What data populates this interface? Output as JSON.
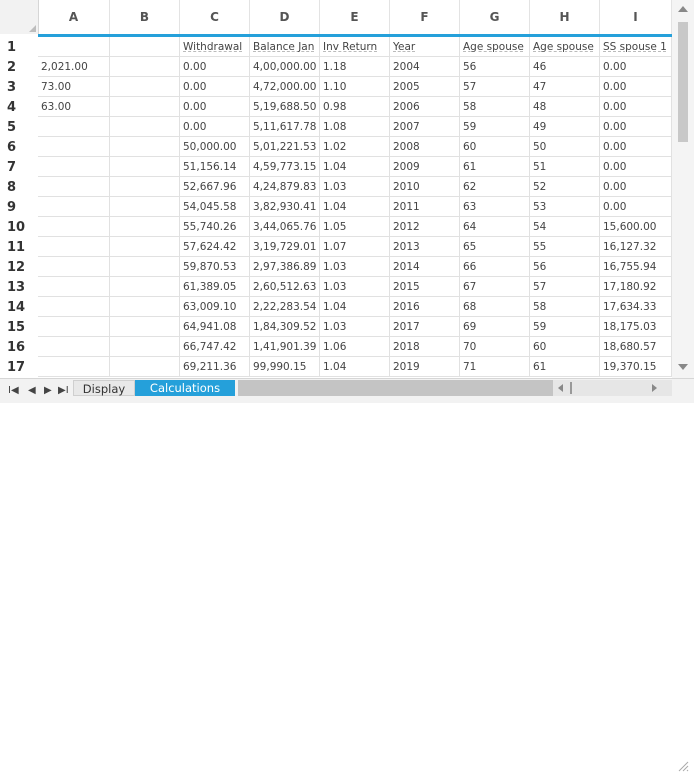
{
  "columns": [
    "A",
    "B",
    "C",
    "D",
    "E",
    "F",
    "G",
    "H",
    "I"
  ],
  "rows": [
    {
      "n": "1",
      "cells": [
        "",
        "",
        "Withdrawal",
        "Balance Jan",
        "Inv Return",
        "Year",
        "Age spouse",
        "Age spouse",
        "SS spouse 1"
      ]
    },
    {
      "n": "2",
      "cells": [
        "2,021.00",
        "",
        "0.00",
        "4,00,000.00",
        "1.18",
        "2004",
        "56",
        "46",
        "0.00"
      ]
    },
    {
      "n": "3",
      "cells": [
        "73.00",
        "",
        "0.00",
        "4,72,000.00",
        "1.10",
        "2005",
        "57",
        "47",
        "0.00"
      ]
    },
    {
      "n": "4",
      "cells": [
        "63.00",
        "",
        "0.00",
        "5,19,688.50",
        "0.98",
        "2006",
        "58",
        "48",
        "0.00"
      ]
    },
    {
      "n": "5",
      "cells": [
        "",
        "",
        "0.00",
        "5,11,617.78",
        "1.08",
        "2007",
        "59",
        "49",
        "0.00"
      ]
    },
    {
      "n": "6",
      "cells": [
        "",
        "",
        "50,000.00",
        "5,01,221.53",
        "1.02",
        "2008",
        "60",
        "50",
        "0.00"
      ]
    },
    {
      "n": "7",
      "cells": [
        "",
        "",
        "51,156.14",
        "4,59,773.15",
        "1.04",
        "2009",
        "61",
        "51",
        "0.00"
      ]
    },
    {
      "n": "8",
      "cells": [
        "",
        "",
        "52,667.96",
        "4,24,879.83",
        "1.03",
        "2010",
        "62",
        "52",
        "0.00"
      ]
    },
    {
      "n": "9",
      "cells": [
        "",
        "",
        "54,045.58",
        "3,82,930.41",
        "1.04",
        "2011",
        "63",
        "53",
        "0.00"
      ]
    },
    {
      "n": "10",
      "cells": [
        "",
        "",
        "55,740.26",
        "3,44,065.76",
        "1.05",
        "2012",
        "64",
        "54",
        "15,600.00"
      ]
    },
    {
      "n": "11",
      "cells": [
        "",
        "",
        "57,624.42",
        "3,19,729.01",
        "1.07",
        "2013",
        "65",
        "55",
        "16,127.32"
      ]
    },
    {
      "n": "12",
      "cells": [
        "",
        "",
        "59,870.53",
        "2,97,386.89",
        "1.03",
        "2014",
        "66",
        "56",
        "16,755.94"
      ]
    },
    {
      "n": "13",
      "cells": [
        "",
        "",
        "61,389.05",
        "2,60,512.63",
        "1.03",
        "2015",
        "67",
        "57",
        "17,180.92"
      ]
    },
    {
      "n": "14",
      "cells": [
        "",
        "",
        "63,009.10",
        "2,22,283.54",
        "1.04",
        "2016",
        "68",
        "58",
        "17,634.33"
      ]
    },
    {
      "n": "15",
      "cells": [
        "",
        "",
        "64,941.08",
        "1,84,309.52",
        "1.03",
        "2017",
        "69",
        "59",
        "18,175.03"
      ]
    },
    {
      "n": "16",
      "cells": [
        "",
        "",
        "66,747.42",
        "1,41,901.39",
        "1.06",
        "2018",
        "70",
        "60",
        "18,680.57"
      ]
    },
    {
      "n": "17",
      "cells": [
        "",
        "",
        "69,211.36",
        "99,990.15",
        "1.04",
        "2019",
        "71",
        "61",
        "19,370.15"
      ]
    }
  ],
  "tabs": {
    "display": "Display",
    "calculations": "Calculations"
  },
  "nav": {
    "first": "I◀",
    "prev": "◀",
    "next": "▶",
    "last": "▶I"
  },
  "colors": {
    "accent": "#25a0da",
    "grid": "#e1e1e1",
    "header_bg": "#f2f2f2"
  }
}
